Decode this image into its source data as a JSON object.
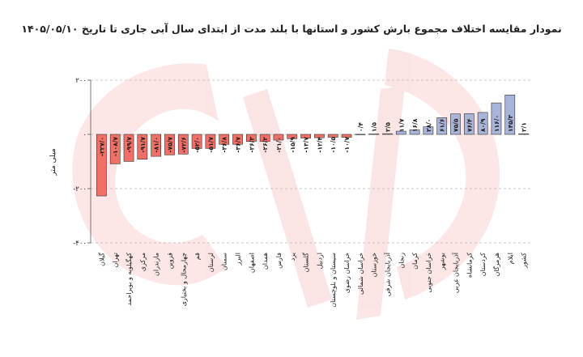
{
  "chart_data": {
    "type": "bar",
    "title": "نمودار مقایسه اختلاف مجموع بارش کشور و استانها با بلند مدت از ابتدای سال آبی جاری تا تاریخ ۱۴۰۵/۰۵/۱۰",
    "xlabel": "",
    "ylabel": "میلی متر",
    "ylim": [
      -200,
      200
    ],
    "yticks": [
      200,
      0,
      -200,
      -400
    ],
    "ytick_labels": [
      "۲۰۰",
      "۰",
      "-۲۰۰",
      "-۴۰۰"
    ],
    "grid": true,
    "legend": "none",
    "categories": [
      "گیلان",
      "تهران",
      "کهگیلویه و بویراحمد",
      "مرکزی",
      "مازندران",
      "قزوین",
      "چهارمحال و بختیاری",
      "قم",
      "لرستان",
      "سمنان",
      "البرز",
      "اصفهان",
      "همدان",
      "فارس",
      "یزد",
      "گلستان",
      "اردبیل",
      "سیستان و بلوچستان",
      "خراسان رضوی",
      "خراسان شمالی",
      "خوزستان",
      "آذربایجان شرقی",
      "زنجان",
      "کرمان",
      "خراسان جنوبی",
      "بوشهر",
      "آذربایجان غربی",
      "کرمانشاه",
      "کردستان",
      "هرمزگان",
      "ایلام",
      "کشور"
    ],
    "values": [
      -227.0,
      -108.7,
      -99.7,
      -91.7,
      -81.0,
      -75.7,
      -72.6,
      -52.0,
      -51.7,
      -36.8,
      -36.7,
      -26.3,
      -26.2,
      -21.0,
      -15.9,
      -13.7,
      -12.4,
      -10.5,
      -10.7,
      0.4,
      1.5,
      2.5,
      11.7,
      16.8,
      28.0,
      61.6,
      75.5,
      76.4,
      80.9,
      116.0,
      145.3,
      2.1
    ],
    "value_labels": [
      "-۲۲۷/۰",
      "-۱۰۸/۷",
      "-۹۹/۷",
      "-۹۱/۷",
      "-۸۱/۰",
      "-۷۵/۷",
      "-۷۲/۶",
      "-۵۲/۰",
      "-۵۱/۷",
      "-۳۶/۸",
      "-۳۶/۷",
      "-۲۶/۳",
      "-۲۶/۲",
      "-۲۱/۰",
      "-۱۵/۹",
      "-۱۳/۷",
      "-۱۲/۴",
      "-۱۰/۵",
      "-۱۰/۷",
      "۰/۴",
      "۱/۵",
      "۲/۵",
      "۱۱/۷",
      "۱۶/۸",
      "۲۸/۰",
      "۶۱/۶",
      "۷۵/۵",
      "۷۶/۴",
      "۸۰/۹",
      "۱۱۶/۰",
      "۱۴۵/۳",
      "۲/۱"
    ],
    "colors": {
      "negative": "#f07068",
      "positive": "#a9b4d9",
      "bar_stroke": "#333333",
      "grid": "#b8b8b8",
      "watermark": "#e53a3a"
    }
  }
}
